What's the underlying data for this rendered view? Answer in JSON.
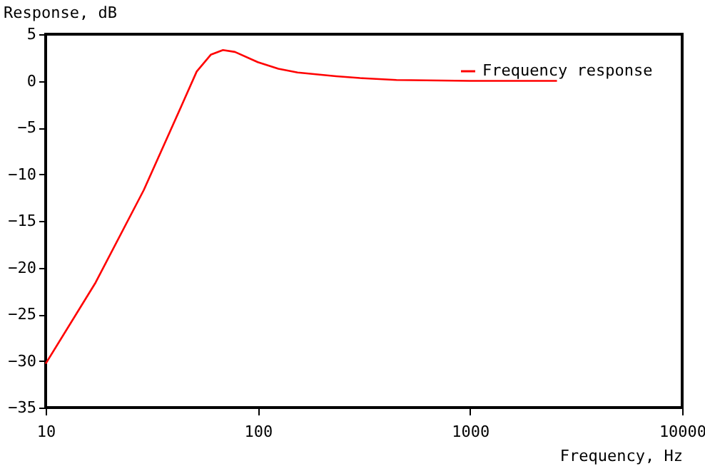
{
  "chart_data": {
    "type": "line",
    "xlabel": "Frequency, Hz",
    "ylabel": "Response, dB",
    "log": "x",
    "xlim": [
      10,
      10000
    ],
    "xticks": [
      10,
      100,
      1000,
      10000
    ],
    "ylim": [
      -35,
      5
    ],
    "yticks": [
      -35,
      -30,
      -25,
      -20,
      -15,
      -10,
      -5,
      0,
      5
    ],
    "legend": "top right",
    "grid": false,
    "series": [
      {
        "name": "Frequency response",
        "color": "#ff0000",
        "x": [
          10,
          17.2,
          29,
          44,
          51.5,
          60,
          68.5,
          78,
          100,
          125,
          154,
          234,
          303,
          450,
          1000,
          2570
        ],
        "values": [
          -30.3,
          -21.6,
          -11.7,
          -2.5,
          1.0,
          2.8,
          3.3,
          3.1,
          2.0,
          1.3,
          0.9,
          0.5,
          0.3,
          0.1,
          0,
          0
        ]
      }
    ]
  }
}
